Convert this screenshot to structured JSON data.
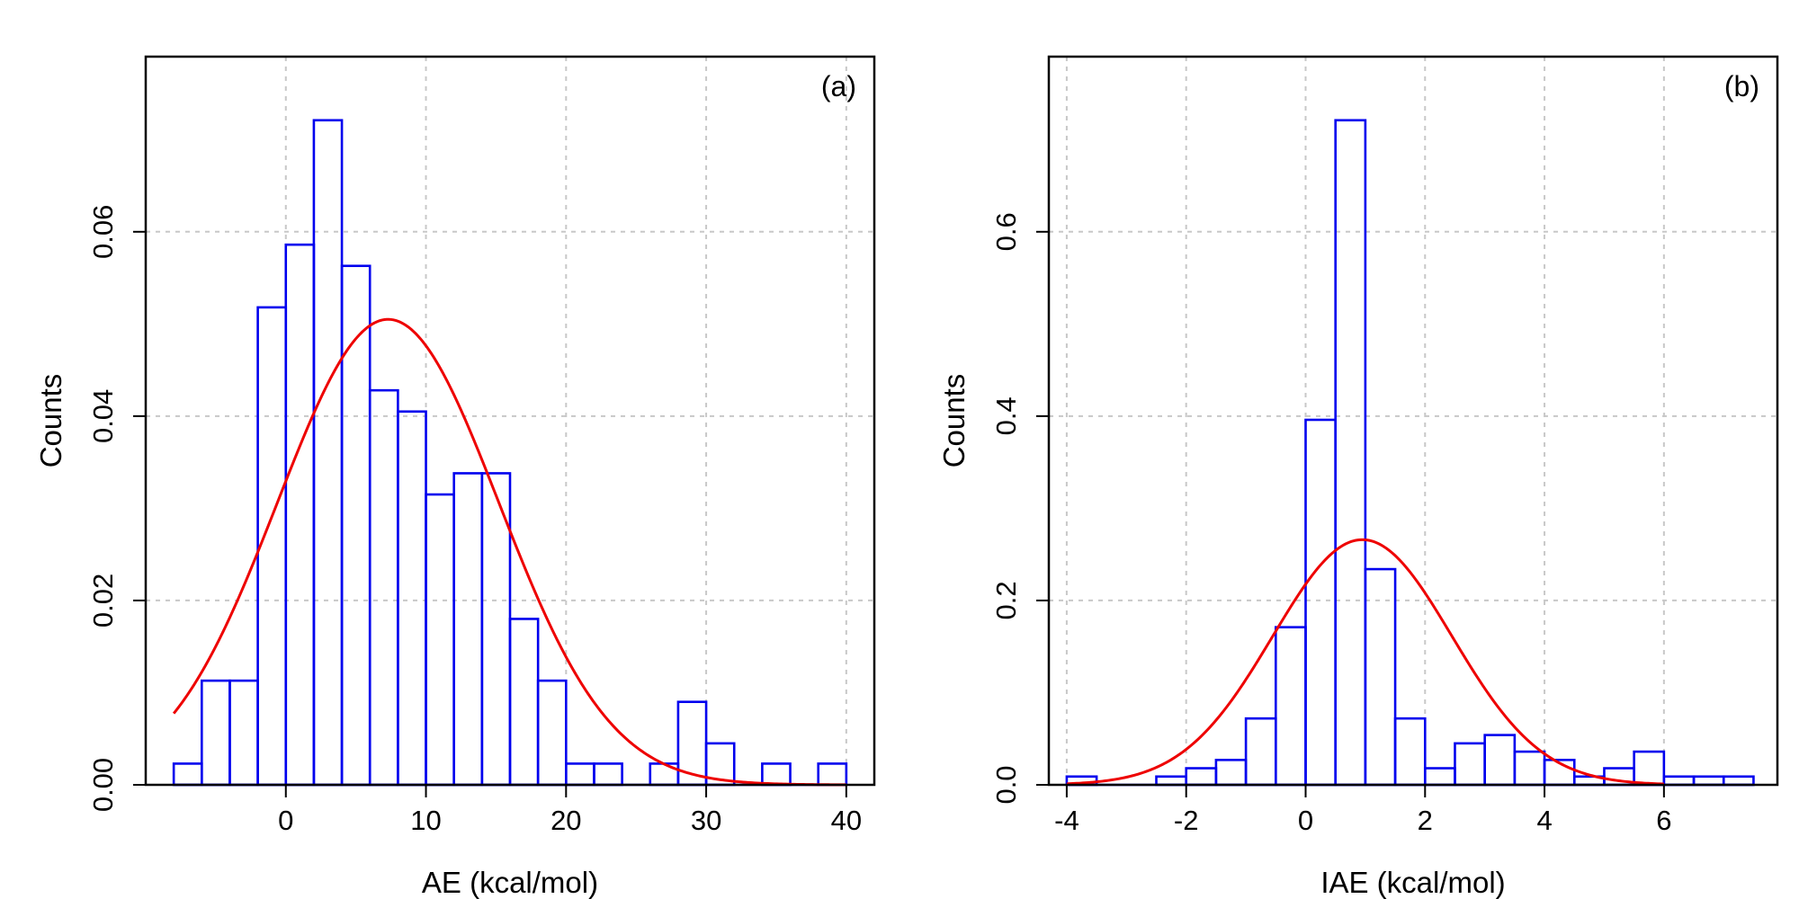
{
  "chart_data": [
    {
      "type": "histogram",
      "panel_label": "(a)",
      "xlabel": "AE (kcal/mol)",
      "ylabel": "Counts",
      "xlim": [
        -10,
        42
      ],
      "ylim": [
        0,
        0.079
      ],
      "xticks": [
        0,
        10,
        20,
        30,
        40
      ],
      "xtick_labels": [
        "0",
        "10",
        "20",
        "30",
        "40"
      ],
      "yticks": [
        0,
        0.02,
        0.04,
        0.06
      ],
      "ytick_labels": [
        "0.00",
        "0.02",
        "0.04",
        "0.06"
      ],
      "grid": true,
      "bin_width": 2,
      "bin_starts": [
        -8,
        -6,
        -4,
        -2,
        0,
        2,
        4,
        6,
        8,
        10,
        12,
        14,
        16,
        18,
        20,
        22,
        24,
        26,
        28,
        30,
        32,
        34,
        36,
        38
      ],
      "values": [
        0.0023,
        0.0113,
        0.0113,
        0.0518,
        0.0586,
        0.0721,
        0.0563,
        0.0428,
        0.0405,
        0.0315,
        0.0338,
        0.0338,
        0.018,
        0.0113,
        0.0023,
        0.0023,
        0,
        0.0023,
        0.009,
        0.0045,
        0,
        0.0023,
        0,
        0.0023
      ],
      "fit_curve": {
        "type": "normal",
        "mean": 7.3,
        "sd": 7.9,
        "x_range": [
          -8,
          40
        ]
      },
      "colors": {
        "bars": "#0000ee",
        "curve": "#ee0000",
        "grid": "#c8c8c8"
      }
    },
    {
      "type": "histogram",
      "panel_label": "(b)",
      "xlabel": "IAE (kcal/mol)",
      "ylabel": "Counts",
      "xlim": [
        -4.3,
        7.9
      ],
      "ylim": [
        0,
        0.79
      ],
      "xticks": [
        -4,
        -2,
        0,
        2,
        4,
        6
      ],
      "xtick_labels": [
        "-4",
        "-2",
        "0",
        "2",
        "4",
        "6"
      ],
      "yticks": [
        0,
        0.2,
        0.4,
        0.6
      ],
      "ytick_labels": [
        "0.0",
        "0.2",
        "0.4",
        "0.6"
      ],
      "grid": true,
      "bin_width": 0.5,
      "bin_starts": [
        -4,
        -3.5,
        -3,
        -2.5,
        -2,
        -1.5,
        -1,
        -0.5,
        0,
        0.5,
        1,
        1.5,
        2,
        2.5,
        3,
        3.5,
        4,
        4.5,
        5,
        5.5,
        6,
        6.5,
        7
      ],
      "values": [
        0.009,
        0,
        0,
        0.009,
        0.018,
        0.027,
        0.072,
        0.171,
        0.396,
        0.721,
        0.234,
        0.072,
        0.018,
        0.045,
        0.054,
        0.036,
        0.027,
        0.009,
        0.018,
        0.036,
        0.009,
        0.009,
        0.009
      ],
      "fit_curve": {
        "type": "normal",
        "mean": 0.95,
        "sd": 1.5,
        "x_range": [
          -4,
          6
        ]
      },
      "colors": {
        "bars": "#0000ee",
        "curve": "#ee0000",
        "grid": "#c8c8c8"
      }
    }
  ]
}
